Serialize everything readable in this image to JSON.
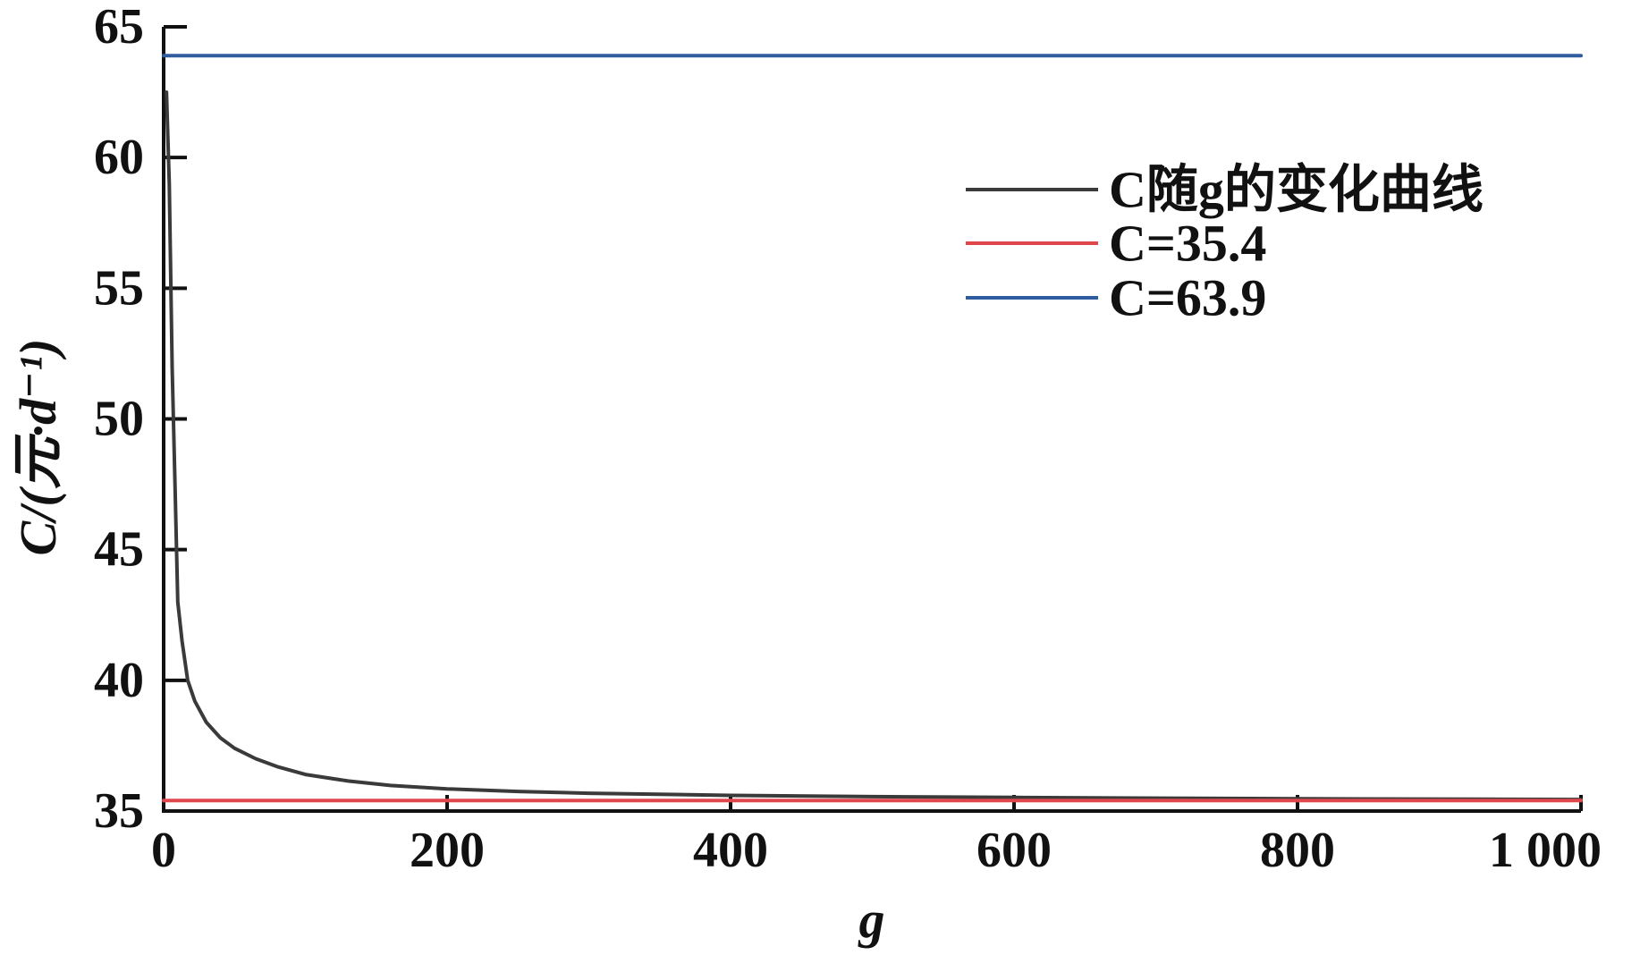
{
  "chart_data": {
    "type": "line",
    "xlabel": "g",
    "ylabel": "C/(元·d⁻¹)",
    "xlim": [
      0,
      1000
    ],
    "ylim": [
      35,
      65
    ],
    "xticks": [
      0,
      200,
      400,
      600,
      800,
      1000
    ],
    "xtick_labels": [
      "0",
      "200",
      "400",
      "600",
      "800",
      "1 000"
    ],
    "yticks": [
      35,
      40,
      45,
      50,
      55,
      60,
      65
    ],
    "ytick_labels": [
      "35",
      "40",
      "45",
      "50",
      "55",
      "60",
      "65"
    ],
    "grid": false,
    "legend": "top-right",
    "series": [
      {
        "name": "C随g的变化曲线",
        "color": "#3a3a3a",
        "x": [
          2,
          4,
          6,
          8,
          10,
          13,
          17,
          22,
          30,
          40,
          50,
          65,
          80,
          100,
          130,
          160,
          200,
          250,
          300,
          400,
          500,
          600,
          800,
          1000
        ],
        "y": [
          62.5,
          59.0,
          52.0,
          47.5,
          43.0,
          41.5,
          40.0,
          39.2,
          38.4,
          37.8,
          37.4,
          37.0,
          36.7,
          36.4,
          36.15,
          35.98,
          35.85,
          35.75,
          35.68,
          35.6,
          35.55,
          35.52,
          35.47,
          35.44
        ]
      },
      {
        "name": "C=35.4",
        "color": "#e0474c",
        "x": [
          0,
          1000
        ],
        "y": [
          35.4,
          35.4
        ]
      },
      {
        "name": "C=63.9",
        "color": "#2f5c9e",
        "x": [
          0,
          1000
        ],
        "y": [
          63.9,
          63.9
        ]
      }
    ]
  }
}
